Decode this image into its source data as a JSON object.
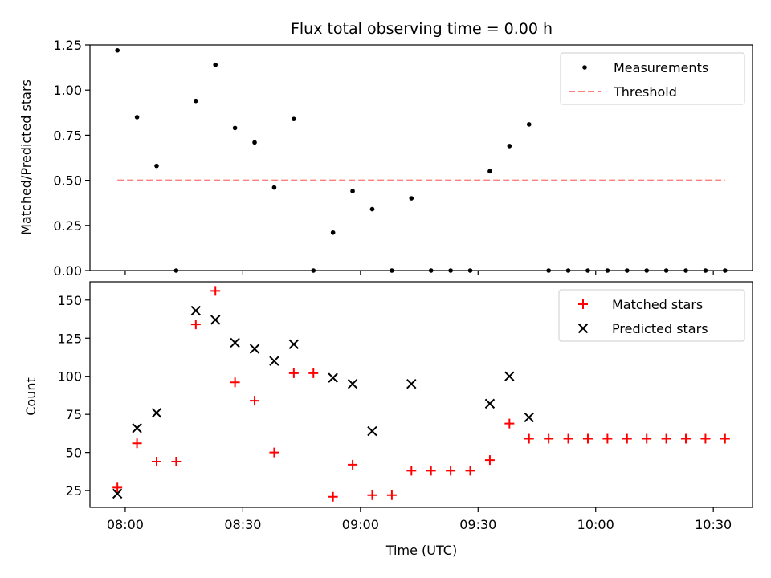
{
  "chart_data": [
    {
      "type": "scatter",
      "title": "Flux total observing time = 0.00 h",
      "xlabel": "",
      "ylabel": "Matched/Predicted stars",
      "ylim": [
        0,
        1.25
      ],
      "yticks": [
        "0.00",
        "0.25",
        "0.50",
        "0.75",
        "1.00",
        "1.25"
      ],
      "legend_position": "top-right",
      "series": [
        {
          "name": "Measurements",
          "marker": "dot",
          "color": "#000000",
          "x": [
            "07:58",
            "08:03",
            "08:08",
            "08:13",
            "08:18",
            "08:23",
            "08:28",
            "08:33",
            "08:38",
            "08:43",
            "08:48",
            "08:53",
            "08:58",
            "09:03",
            "09:08",
            "09:13",
            "09:18",
            "09:23",
            "09:28",
            "09:33",
            "09:38",
            "09:43",
            "09:48",
            "09:53",
            "09:58",
            "10:03",
            "10:08",
            "10:13",
            "10:18",
            "10:23",
            "10:28",
            "10:33"
          ],
          "y": [
            1.22,
            0.85,
            0.58,
            0,
            0.94,
            1.14,
            0.79,
            0.71,
            0.46,
            0.84,
            0,
            0.21,
            0.44,
            0.34,
            0,
            0.4,
            0,
            0,
            0,
            0.55,
            0.69,
            0.81,
            0,
            0,
            0,
            0,
            0,
            0,
            0,
            0,
            0,
            0
          ]
        },
        {
          "name": "Threshold",
          "marker": "dashed-line",
          "color": "#ff7f7f",
          "x": [
            "07:58",
            "10:33"
          ],
          "y": [
            0.5,
            0.5
          ]
        }
      ]
    },
    {
      "type": "scatter",
      "title": "",
      "xlabel": "Time (UTC)",
      "ylabel": "Count",
      "ylim": [
        14,
        162
      ],
      "yticks": [
        "25",
        "50",
        "75",
        "100",
        "125",
        "150"
      ],
      "xticks": [
        "08:00",
        "08:30",
        "09:00",
        "09:30",
        "10:00",
        "10:30"
      ],
      "xlim": [
        "07:51",
        "10:40"
      ],
      "legend_position": "top-right",
      "series": [
        {
          "name": "Matched stars",
          "marker": "plus",
          "color": "#ff0000",
          "x": [
            "07:58",
            "08:03",
            "08:08",
            "08:13",
            "08:18",
            "08:23",
            "08:28",
            "08:33",
            "08:38",
            "08:43",
            "08:48",
            "08:53",
            "08:58",
            "09:03",
            "09:08",
            "09:13",
            "09:18",
            "09:23",
            "09:28",
            "09:33",
            "09:38",
            "09:43",
            "09:48",
            "09:53",
            "09:58",
            "10:03",
            "10:08",
            "10:13",
            "10:18",
            "10:23",
            "10:28",
            "10:33"
          ],
          "y": [
            27,
            56,
            44,
            44,
            134,
            156,
            96,
            84,
            50,
            102,
            102,
            21,
            42,
            22,
            22,
            38,
            38,
            38,
            38,
            45,
            69,
            59,
            59,
            59,
            59,
            59,
            59,
            59,
            59,
            59,
            59,
            59
          ]
        },
        {
          "name": "Predicted stars",
          "marker": "x",
          "color": "#000000",
          "x": [
            "07:58",
            "08:03",
            "08:08",
            "08:18",
            "08:23",
            "08:28",
            "08:33",
            "08:38",
            "08:43",
            "08:53",
            "08:58",
            "09:03",
            "09:13",
            "09:33",
            "09:38",
            "09:43"
          ],
          "y": [
            23,
            66,
            76,
            143,
            137,
            122,
            118,
            110,
            121,
            99,
            95,
            64,
            95,
            82,
            100,
            73
          ]
        }
      ]
    }
  ]
}
